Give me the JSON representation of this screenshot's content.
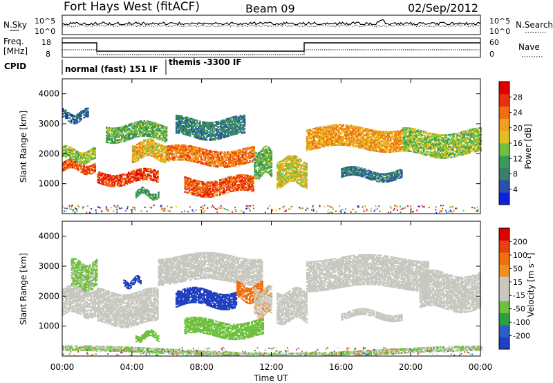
{
  "header": {
    "station": "Fort Hays West (fitACF)",
    "beam": "Beam 09",
    "date": "02/Sep/2012"
  },
  "summary_panels": {
    "nsky_label": "N.Sky",
    "nsky_ticks": [
      "10^5",
      "10^0"
    ],
    "nsearch_label": "N.Search",
    "nsearch_ticks": [
      "10^5",
      "10^0"
    ],
    "freq_label": "Freq.",
    "freq_unit": "[MHz]",
    "freq_ticks": [
      "18",
      "8"
    ],
    "nave_label": "Nave",
    "nave_ticks": [
      "60",
      "0"
    ],
    "cpid_label": "CPID",
    "cpid_modes": [
      "normal (fast) 151 IF",
      "themis -3300 IF"
    ]
  },
  "colors": {
    "power_scale": [
      "#1020e0",
      "#2a4fb0",
      "#3a7f6a",
      "#3a9a5a",
      "#70c040",
      "#e0c020",
      "#f0a020",
      "#f07010",
      "#e83010",
      "#e00000"
    ],
    "velocity_scale": [
      "#2040c0",
      "#2a5fc8",
      "#2aa040",
      "#70c040",
      "#c8c8c0",
      "#c8c8c0",
      "#f09020",
      "#f07010",
      "#e84010",
      "#e00000"
    ]
  },
  "chart_data": [
    {
      "type": "heatmap",
      "title": "Power",
      "ylabel": "Slant Range [km]",
      "xlabel": "",
      "x_ticks": [
        "00:00",
        "04:00",
        "08:00",
        "12:00",
        "16:00",
        "20:00",
        "00:00"
      ],
      "x_hours": [
        0,
        4,
        8,
        12,
        16,
        20,
        24
      ],
      "y_ticks": [
        1000,
        2000,
        3000,
        4000
      ],
      "ylim": [
        0,
        4500
      ],
      "colorbar_label": "Power [dB]",
      "colorbar_ticks": [
        "28",
        "24",
        "20",
        "16",
        "12",
        "8",
        "4"
      ],
      "clim": [
        0,
        30
      ],
      "bands": [
        {
          "t0": 0.0,
          "t1": 1.9,
          "r0": 1450,
          "r1": 1750,
          "val": 24
        },
        {
          "t0": 0.0,
          "t1": 1.9,
          "r0": 1800,
          "r1": 2200,
          "val": 14
        },
        {
          "t0": 0.0,
          "t1": 1.5,
          "r0": 3150,
          "r1": 3450,
          "val": 6
        },
        {
          "t0": 2.0,
          "t1": 5.5,
          "r0": 1050,
          "r1": 1450,
          "val": 25
        },
        {
          "t0": 2.5,
          "t1": 6.0,
          "r0": 2500,
          "r1": 3000,
          "val": 12
        },
        {
          "t0": 4.0,
          "t1": 6.0,
          "r0": 1850,
          "r1": 2400,
          "val": 18
        },
        {
          "t0": 4.2,
          "t1": 5.5,
          "r0": 600,
          "r1": 800,
          "val": 10
        },
        {
          "t0": 6.0,
          "t1": 11.0,
          "r0": 1700,
          "r1": 2200,
          "val": 22
        },
        {
          "t0": 6.5,
          "t1": 10.5,
          "r0": 2600,
          "r1": 3200,
          "val": 8
        },
        {
          "t0": 7.0,
          "t1": 11.0,
          "r0": 700,
          "r1": 1200,
          "val": 24
        },
        {
          "t0": 11.0,
          "t1": 12.0,
          "r0": 1300,
          "r1": 2200,
          "val": 12
        },
        {
          "t0": 12.3,
          "t1": 14.0,
          "r0": 1000,
          "r1": 1900,
          "val": 16
        },
        {
          "t0": 14.0,
          "t1": 19.5,
          "r0": 2200,
          "r1": 2900,
          "val": 20
        },
        {
          "t0": 16.0,
          "t1": 19.5,
          "r0": 1200,
          "r1": 1500,
          "val": 7
        },
        {
          "t0": 19.5,
          "t1": 24.0,
          "r0": 2000,
          "r1": 2800,
          "val": 14
        }
      ]
    },
    {
      "type": "heatmap",
      "title": "Velocity",
      "ylabel": "Slant Range [km]",
      "xlabel": "Time UT",
      "x_ticks": [
        "00:00",
        "04:00",
        "08:00",
        "12:00",
        "16:00",
        "20:00",
        "00:00"
      ],
      "x_hours": [
        0,
        4,
        8,
        12,
        16,
        20,
        24
      ],
      "y_ticks": [
        1000,
        2000,
        3000,
        4000
      ],
      "ylim": [
        0,
        4500
      ],
      "colorbar_label": "Velocity [m s⁻¹]",
      "colorbar_ticks": [
        "200",
        "100",
        "50",
        "15",
        "-15",
        "-50",
        "-100",
        "-200"
      ],
      "clim": [
        -250,
        250
      ],
      "bands": [
        {
          "t0": 0.0,
          "t1": 2.0,
          "r0": 1400,
          "r1": 2300,
          "val": 0
        },
        {
          "t0": 0.5,
          "t1": 2.0,
          "r0": 2300,
          "r1": 3200,
          "val": -60
        },
        {
          "t0": 2.0,
          "t1": 5.5,
          "r0": 1100,
          "r1": 2200,
          "val": 0
        },
        {
          "t0": 3.5,
          "t1": 4.5,
          "r0": 2400,
          "r1": 2600,
          "val": -220
        },
        {
          "t0": 4.2,
          "t1": 5.5,
          "r0": 600,
          "r1": 800,
          "val": -80
        },
        {
          "t0": 5.5,
          "t1": 11.5,
          "r0": 2500,
          "r1": 3400,
          "val": 0
        },
        {
          "t0": 6.5,
          "t1": 10.0,
          "r0": 1700,
          "r1": 2200,
          "val": -220
        },
        {
          "t0": 7.0,
          "t1": 11.5,
          "r0": 700,
          "r1": 1200,
          "val": -80
        },
        {
          "t0": 10.0,
          "t1": 11.5,
          "r0": 1900,
          "r1": 2400,
          "val": 120
        },
        {
          "t0": 11.0,
          "t1": 12.0,
          "r0": 1400,
          "r1": 2300,
          "val": 40
        },
        {
          "t0": 12.3,
          "t1": 14.0,
          "r0": 1200,
          "r1": 2200,
          "val": 0
        },
        {
          "t0": 14.0,
          "t1": 21.0,
          "r0": 2300,
          "r1": 3300,
          "val": 0
        },
        {
          "t0": 16.0,
          "t1": 19.5,
          "r0": 1300,
          "r1": 1500,
          "val": 0
        },
        {
          "t0": 20.5,
          "t1": 24.0,
          "r0": 1600,
          "r1": 2800,
          "val": 0
        },
        {
          "t0": 0.0,
          "t1": 24.0,
          "r0": 100,
          "r1": 250,
          "val": -50
        }
      ]
    }
  ]
}
